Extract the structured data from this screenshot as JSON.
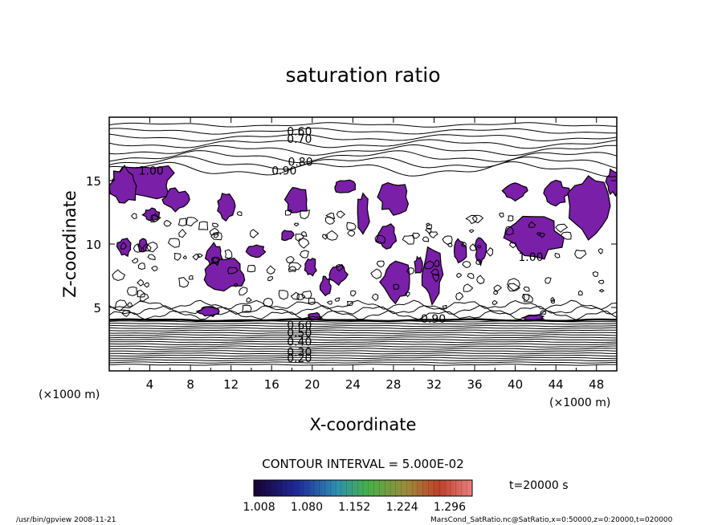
{
  "chart_data": {
    "type": "contour",
    "title": "saturation ratio",
    "xlabel": "X-coordinate",
    "ylabel": "Z-coordinate",
    "x_unit": "(×1000 m)",
    "y_unit": "(×1000 m)",
    "xlim": [
      0,
      50
    ],
    "ylim": [
      0,
      20
    ],
    "x_ticks": [
      "4",
      "8",
      "12",
      "16",
      "20",
      "24",
      "28",
      "32",
      "36",
      "40",
      "44",
      "48"
    ],
    "y_ticks": [
      "5",
      "10",
      "15"
    ],
    "contour_interval_text": "CONTOUR INTERVAL = 5.000E-02",
    "contour_labels": [
      {
        "text": "0.60",
        "x": 17.5,
        "z": 18.9
      },
      {
        "text": "0.70",
        "x": 17.5,
        "z": 18.3
      },
      {
        "text": "0.80",
        "x": 17.6,
        "z": 16.5
      },
      {
        "text": "0.90",
        "x": 16.0,
        "z": 15.8
      },
      {
        "text": "1.00",
        "x": 2.9,
        "z": 15.8
      },
      {
        "text": "1.00",
        "x": 40.3,
        "z": 9.0
      },
      {
        "text": "0.90",
        "x": 30.7,
        "z": 4.1
      },
      {
        "text": "0.60",
        "x": 17.5,
        "z": 3.6
      },
      {
        "text": "0.50",
        "x": 17.5,
        "z": 3.0
      },
      {
        "text": "0.40",
        "x": 17.5,
        "z": 2.3
      },
      {
        "text": "0.30",
        "x": 17.5,
        "z": 1.5
      },
      {
        "text": "0.20",
        "x": 17.5,
        "z": 1.0
      }
    ],
    "shaded_above": 1.0,
    "shade_color": "#7a1fa8",
    "colorbar_ticks": [
      "1.008",
      "1.080",
      "1.152",
      "1.224",
      "1.296"
    ],
    "colorbar_range": [
      1.0,
      1.33
    ],
    "time_label": "t=20000 s"
  },
  "footer": {
    "left": "/usr/bin/gpview   2008-11-21",
    "right": "MarsCond_SatRatio.nc@SatRatio,x=0:50000,z=0:20000,t=020000"
  }
}
